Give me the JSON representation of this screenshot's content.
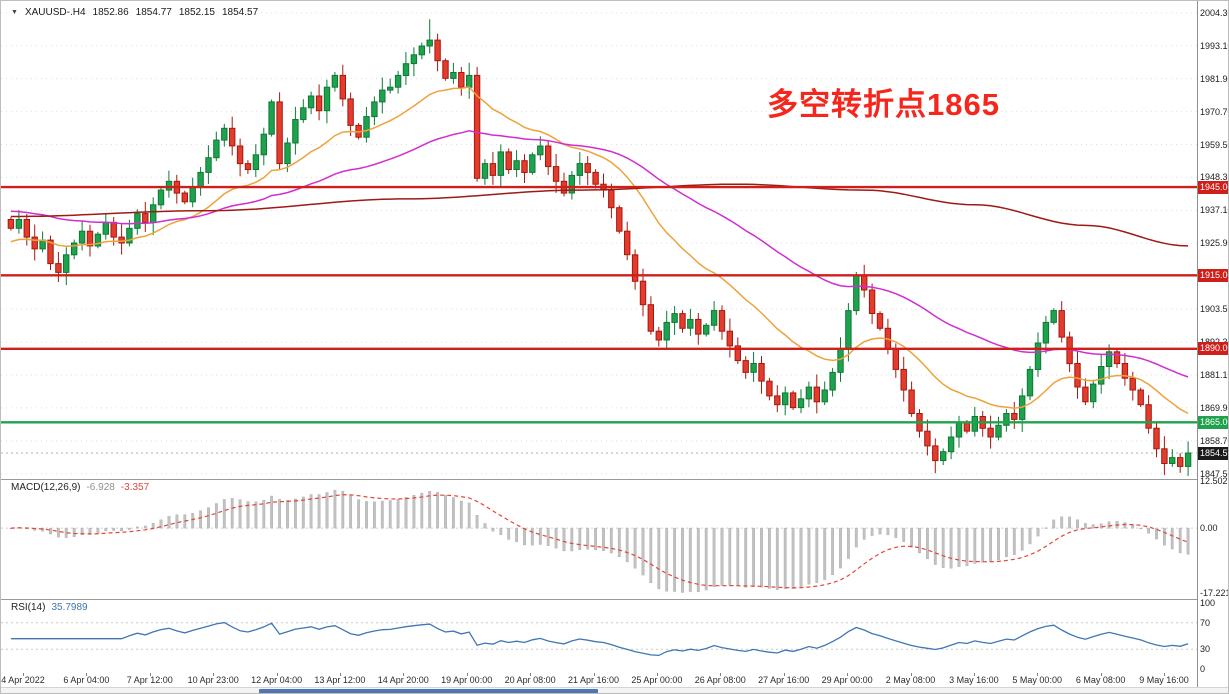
{
  "symbol_bar": {
    "dropdown_icon": "▼",
    "symbol": "XAUUSD-.H4",
    "open": "1852.86",
    "high": "1854.77",
    "low": "1852.15",
    "close": "1854.57"
  },
  "annotation": {
    "text": "多空转折点1865",
    "color": "#f5261c"
  },
  "price_axis": {
    "ticks": [
      "2004.30",
      "1993.10",
      "1981.90",
      "1970.70",
      "1959.50",
      "1948.30",
      "1937.10",
      "1925.90",
      "1914.70",
      "1903.50",
      "1892.30",
      "1881.10",
      "1869.90",
      "1858.70",
      "1847.50"
    ],
    "levels": [
      {
        "price": 1945.0,
        "label": "1945.00",
        "color": "#ce1f1a",
        "text_color": "#ffffff",
        "kind": "resistance"
      },
      {
        "price": 1915.0,
        "label": "1915.00",
        "color": "#ce1f1a",
        "text_color": "#ffffff",
        "kind": "resistance"
      },
      {
        "price": 1890.0,
        "label": "1890.00",
        "color": "#ce1f1a",
        "text_color": "#ffffff",
        "kind": "resistance"
      },
      {
        "price": 1865.0,
        "label": "1865.00",
        "color": "#1fa24b",
        "text_color": "#ffffff",
        "kind": "support"
      }
    ],
    "last": {
      "price": 1854.57,
      "label": "1854.57",
      "color": "#1b1b1b",
      "text_color": "#ffffff"
    }
  },
  "macd_panel": {
    "label": "MACD(12,26,9)",
    "value_main": "-6.928",
    "value_signal": "-3.357",
    "value_main_color": "#8f8f8f",
    "value_signal_color": "#e2463b",
    "axis_labels": [
      "12.502",
      "0.00",
      "-17.221"
    ],
    "histogram_color": "#c2c2c2",
    "signal_color": "#e2463b"
  },
  "rsi_panel": {
    "label": "RSI(14)",
    "value": "35.7989",
    "axis_labels": [
      "100",
      "70",
      "30",
      "0"
    ],
    "levels": [
      70,
      30
    ],
    "line_color": "#3f76b4"
  },
  "time_axis": {
    "labels": [
      "4 Apr 2022",
      "6 Apr 04:00",
      "7 Apr 12:00",
      "10 Apr 23:00",
      "12 Apr 04:00",
      "13 Apr 12:00",
      "14 Apr 20:00",
      "19 Apr 00:00",
      "20 Apr 08:00",
      "21 Apr 16:00",
      "25 Apr 00:00",
      "26 Apr 08:00",
      "27 Apr 16:00",
      "29 Apr 00:00",
      "2 May 08:00",
      "3 May 16:00",
      "5 May 00:00",
      "6 May 08:00",
      "9 May 16:00"
    ]
  },
  "scrollbar": {
    "thumb_color": "#4d76b2"
  },
  "chart_data": {
    "type": "candlestick",
    "symbol": "XAUUSD",
    "timeframe": "H4",
    "title": "XAUUSD-.H4",
    "current_bar": {
      "open": 1852.86,
      "high": 1854.77,
      "low": 1852.15,
      "close": 1854.57
    },
    "y_axis": {
      "min": 1847.5,
      "max": 2004.3,
      "tick_step": 11.2
    },
    "x_axis": {
      "start": "4 Apr 2022",
      "end": "9 May 16:00"
    },
    "closes": [
      1931,
      1934,
      1928,
      1924,
      1927,
      1919,
      1916,
      1922,
      1926,
      1930,
      1925,
      1929,
      1933,
      1928,
      1926,
      1931,
      1936,
      1933,
      1939,
      1944,
      1947,
      1943,
      1940,
      1945,
      1950,
      1955,
      1961,
      1965,
      1959,
      1953,
      1951,
      1956,
      1963,
      1974,
      1953,
      1960,
      1968,
      1972,
      1976,
      1971,
      1979,
      1983,
      1975,
      1966,
      1962,
      1969,
      1974,
      1978,
      1979,
      1983,
      1987,
      1990,
      1993,
      1995,
      1988,
      1982,
      1984,
      1979,
      1983,
      1948,
      1953,
      1949,
      1957,
      1951,
      1954,
      1950,
      1956,
      1959,
      1952,
      1947,
      1943,
      1949,
      1953,
      1950,
      1946,
      1944,
      1938,
      1930,
      1922,
      1913,
      1905,
      1896,
      1893,
      1899,
      1902,
      1897,
      1900,
      1895,
      1898,
      1903,
      1896,
      1891,
      1886,
      1882,
      1885,
      1879,
      1874,
      1871,
      1875,
      1870,
      1873,
      1877,
      1872,
      1876,
      1882,
      1890,
      1903,
      1915,
      1910,
      1902,
      1897,
      1890,
      1883,
      1876,
      1868,
      1862,
      1857,
      1852,
      1855,
      1860,
      1865,
      1862,
      1867,
      1863,
      1860,
      1864,
      1868,
      1866,
      1874,
      1883,
      1892,
      1899,
      1903,
      1894,
      1885,
      1877,
      1872,
      1878,
      1884,
      1889,
      1885,
      1880,
      1876,
      1871,
      1863,
      1856,
      1851,
      1853,
      1850,
      1854.57
    ],
    "up_color": "#1ea24d",
    "up_border": "#0c7a35",
    "down_color": "#e23c2f",
    "down_border": "#a8170d",
    "moving_averages": [
      {
        "name": "fast",
        "period": 20,
        "seed": 1926,
        "color": "#eda33b"
      },
      {
        "name": "mid",
        "period": 55,
        "seed": 1937,
        "color": "#d02ed0"
      }
    ],
    "slow_ma": {
      "color": "#9e1a15",
      "points": [
        [
          0,
          1935
        ],
        [
          25,
          1937
        ],
        [
          50,
          1941
        ],
        [
          72,
          1944
        ],
        [
          92,
          1946
        ],
        [
          108,
          1944
        ],
        [
          122,
          1939
        ],
        [
          136,
          1932
        ],
        [
          149,
          1925
        ]
      ]
    },
    "levels": {
      "resistance": [
        1945,
        1915,
        1890
      ],
      "support": 1865,
      "last_price": 1854.57
    },
    "macd": {
      "fast": 12,
      "slow": 26,
      "signal_period": 9,
      "last_main": -6.928,
      "last_signal": -3.357,
      "scale_max": 12.502,
      "scale_min": -17.221
    },
    "rsi": {
      "period": 14,
      "last": 35.7989,
      "overbought": 70,
      "oversold": 30
    }
  }
}
